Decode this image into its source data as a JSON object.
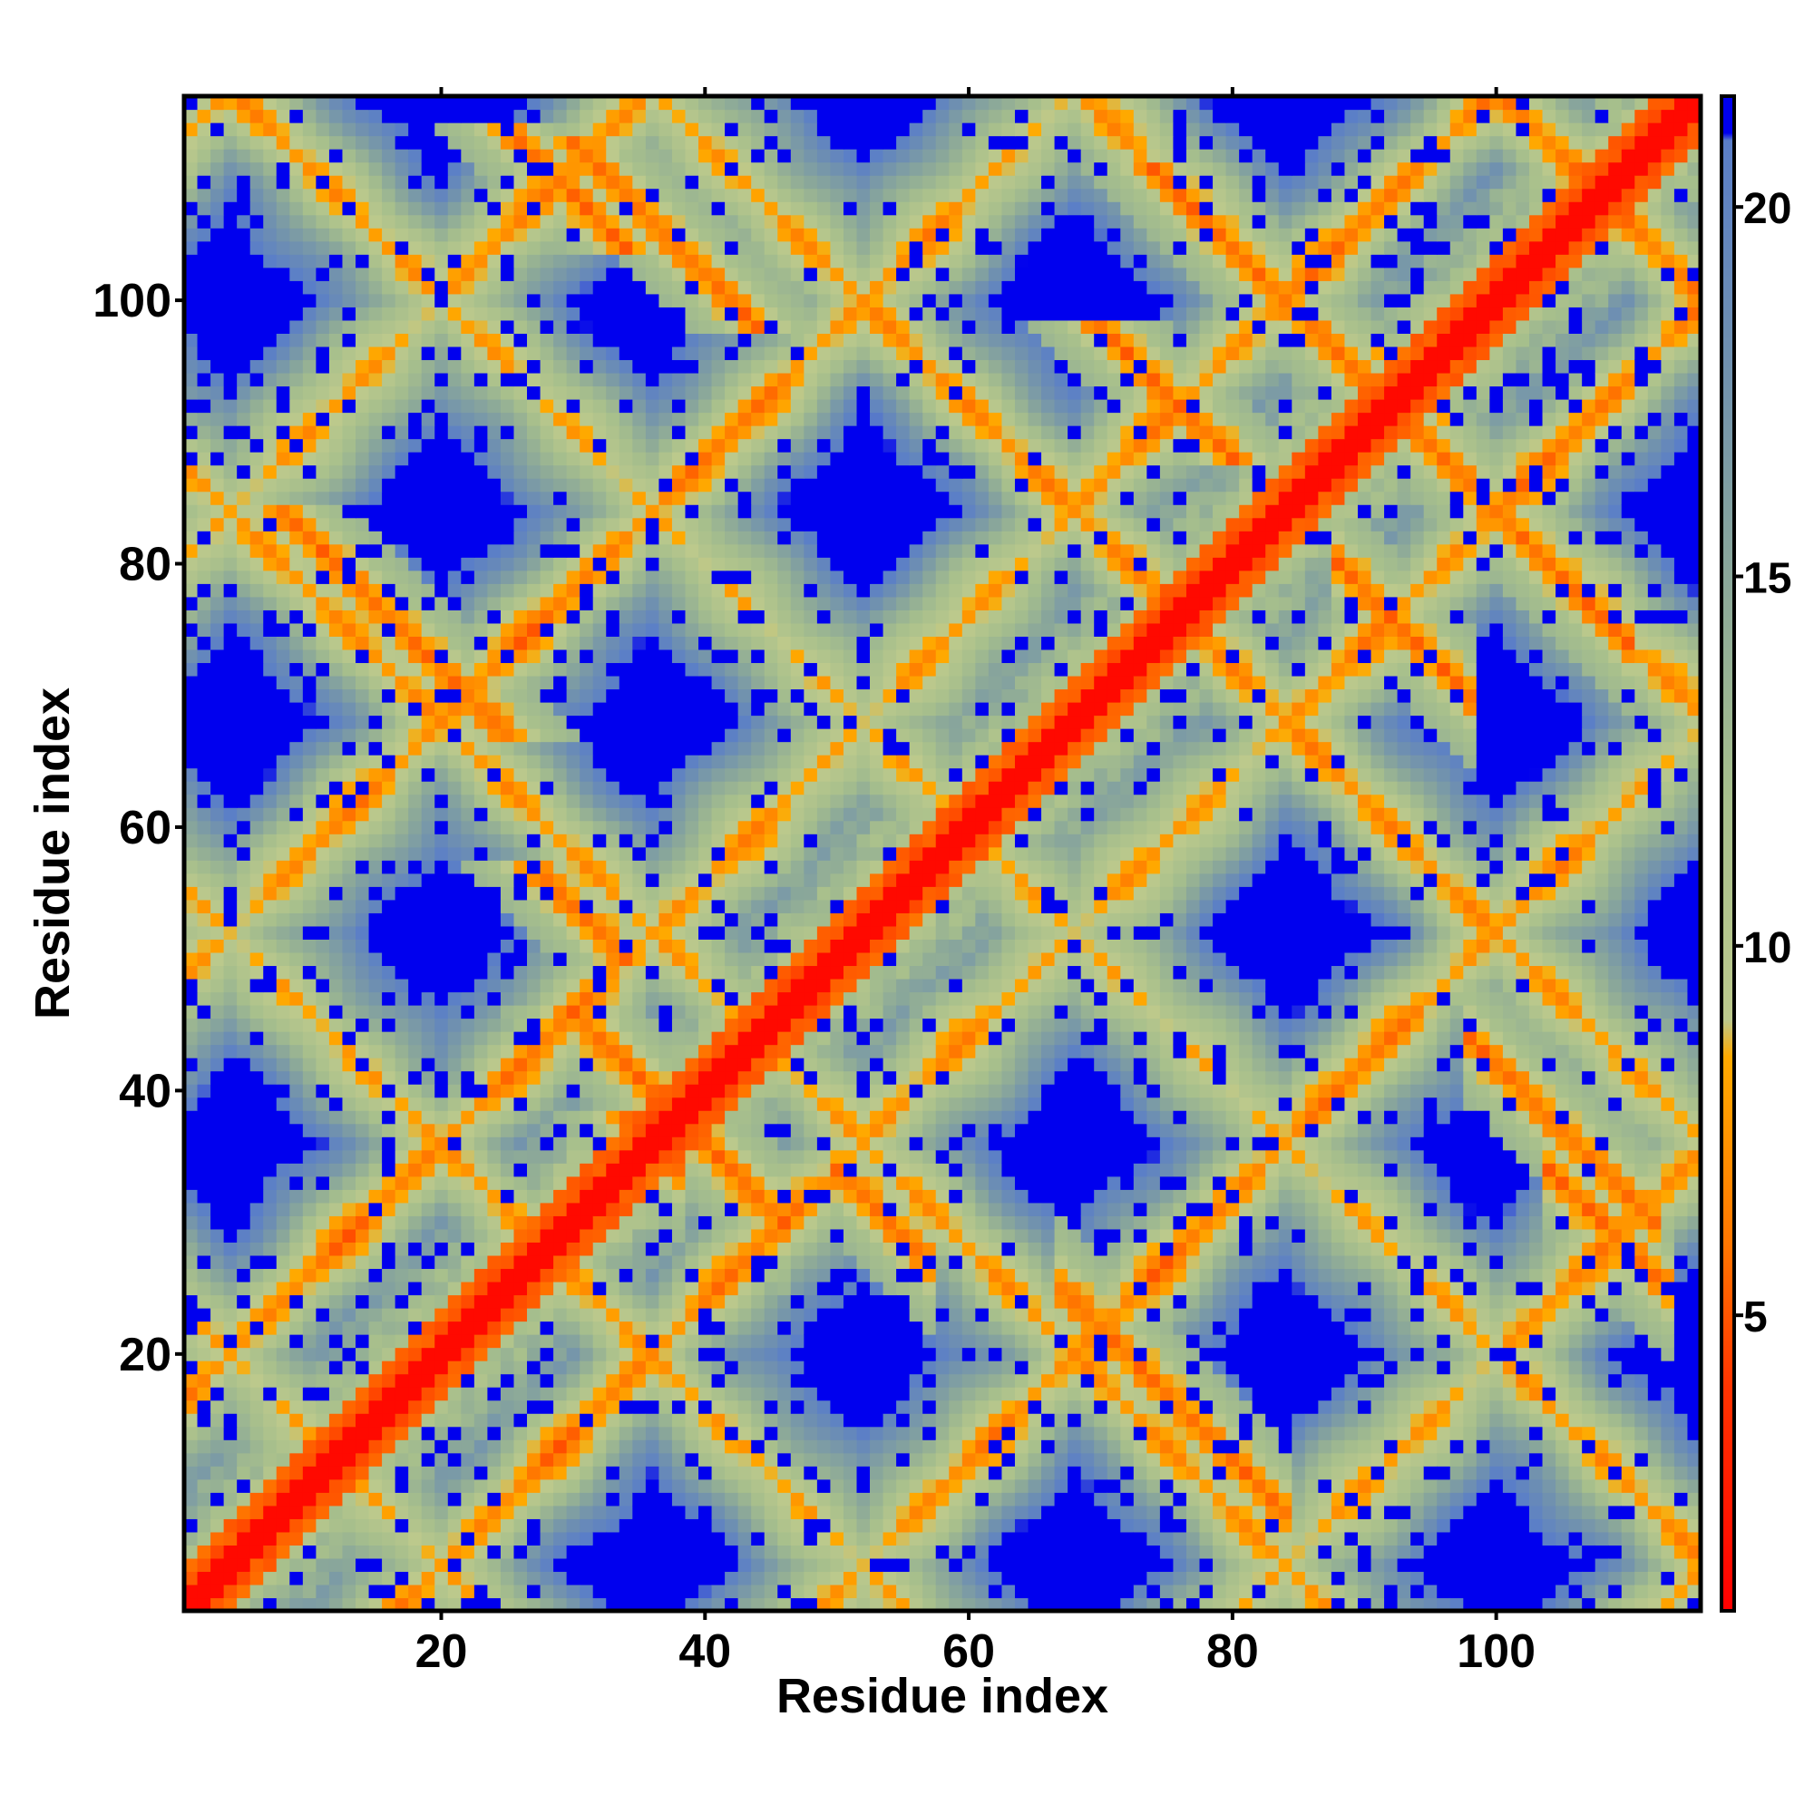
{
  "chart_data": {
    "type": "heatmap",
    "title": "",
    "xlabel": "Residue index",
    "ylabel": "Residue index",
    "xlim": [
      1,
      115
    ],
    "ylim": [
      1,
      115
    ],
    "n_residues": 115,
    "x_ticks": [
      20,
      40,
      60,
      80,
      100
    ],
    "y_ticks": [
      20,
      40,
      60,
      80,
      100
    ],
    "x_tick_labels": [
      "20",
      "40",
      "60",
      "80",
      "100"
    ],
    "y_tick_labels": [
      "20",
      "40",
      "60",
      "80",
      "100"
    ],
    "colorbar": {
      "range": [
        1,
        21.5
      ],
      "ticks": [
        5,
        10,
        15,
        20
      ],
      "tick_labels": [
        "5",
        "10",
        "15",
        "20"
      ],
      "cutoff_value": 21,
      "stops": [
        {
          "value": 1,
          "color": "#ff0000"
        },
        {
          "value": 4,
          "color": "#ff3300"
        },
        {
          "value": 6,
          "color": "#ff7700"
        },
        {
          "value": 8.5,
          "color": "#ffaa00"
        },
        {
          "value": 9,
          "color": "#bcc98c"
        },
        {
          "value": 12,
          "color": "#a7bf8c"
        },
        {
          "value": 15,
          "color": "#8aa79a"
        },
        {
          "value": 18,
          "color": "#6f90b0"
        },
        {
          "value": 20.9,
          "color": "#5a7ec8"
        },
        {
          "value": 21,
          "color": "#0000ee"
        }
      ]
    },
    "grid": false,
    "legend": "colorbar-right",
    "description": "Symmetric residue-residue distance map with bright main diagonal and off-diagonal anti-diagonal contact stripes"
  }
}
